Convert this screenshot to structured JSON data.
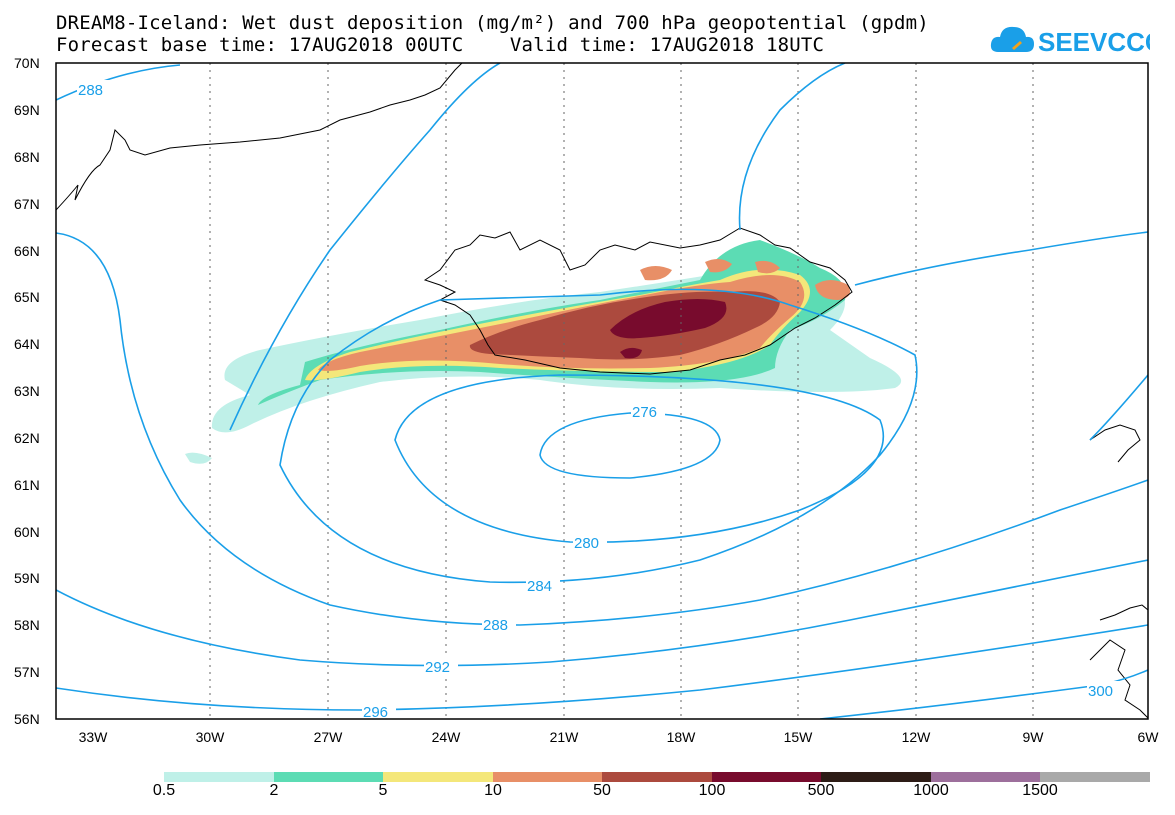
{
  "title": {
    "line1": "DREAM8-Iceland: Wet dust deposition (mg/m²) and 700 hPa geopotential (gpdm)",
    "line2": "Forecast base time: 17AUG2018 00UTC    Valid time: 17AUG2018 18UTC"
  },
  "logo": {
    "text": "SEEVCCC",
    "icon": "cloud-icon",
    "color": "#1a9fe8"
  },
  "axes": {
    "lat_labels": [
      "70N",
      "69N",
      "68N",
      "67N",
      "66N",
      "65N",
      "64N",
      "63N",
      "62N",
      "61N",
      "60N",
      "59N",
      "58N",
      "57N",
      "56N"
    ],
    "lon_labels": [
      "33W",
      "30W",
      "27W",
      "24W",
      "21W",
      "18W",
      "15W",
      "12W",
      "9W",
      "6W"
    ]
  },
  "contours": {
    "color": "#1a9fe8",
    "labels": [
      "288",
      "276",
      "280",
      "284",
      "288",
      "292",
      "296",
      "300"
    ]
  },
  "legend": {
    "boundaries": [
      "0.5",
      "2",
      "5",
      "10",
      "50",
      "100",
      "500",
      "1000",
      "1500"
    ],
    "colors": [
      "#bff0e8",
      "#5cdcb4",
      "#f4e77a",
      "#e88f67",
      "#ac4a3e",
      "#780b2d",
      "#2d1c16",
      "#9d6f9c",
      "#a9a9a9"
    ]
  }
}
